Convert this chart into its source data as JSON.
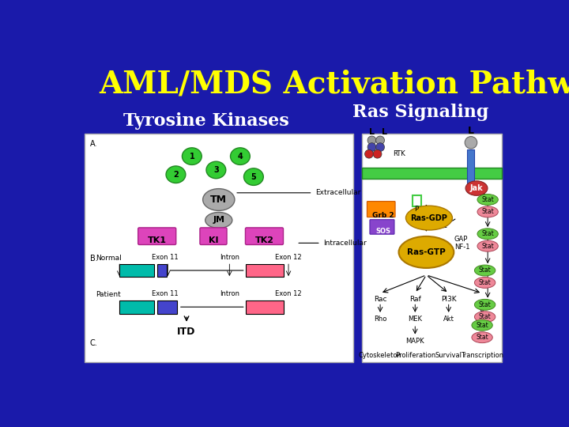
{
  "title": "AML/MDS Activation Pathways",
  "subtitle_left": "Tyrosine Kinases",
  "subtitle_right": "Ras Signaling",
  "bg_color": "#1a1aaa",
  "title_color": "#ffff00",
  "subtitle_color": "#ffffff",
  "title_fontsize": 28,
  "subtitle_fontsize": 16,
  "fig_width": 7.2,
  "fig_height": 5.4
}
